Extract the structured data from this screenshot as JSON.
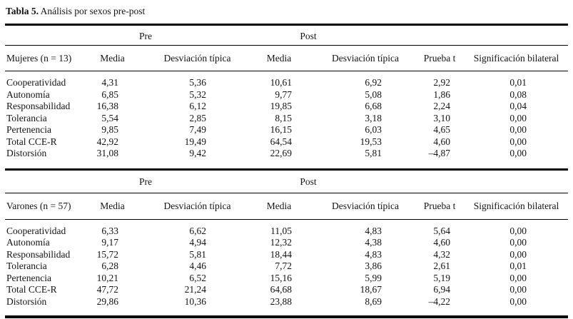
{
  "title": {
    "bold": "Tabla 5.",
    "rest": " Análisis por sexos pre-post"
  },
  "columns": {
    "pre": "Pre",
    "post": "Post",
    "media": "Media",
    "sd": "Desviación típica",
    "t": "Prueba t",
    "sig": "Significación bilateral"
  },
  "sections": [
    {
      "group_header": "Mujeres (n = 13)",
      "rows": [
        {
          "label": "Cooperatividad",
          "pre_media": "4,31",
          "pre_sd": "5,36",
          "post_media": "10,61",
          "post_sd": "6,92",
          "t": "2,92",
          "sig": "0,01"
        },
        {
          "label": "Autonomía",
          "pre_media": "6,85",
          "pre_sd": "5,32",
          "post_media": "9,77",
          "post_sd": "5,08",
          "t": "1,86",
          "sig": "0,08"
        },
        {
          "label": "Responsabilidad",
          "pre_media": "16,38",
          "pre_sd": "6,12",
          "post_media": "19,85",
          "post_sd": "6,68",
          "t": "2,24",
          "sig": "0,04"
        },
        {
          "label": "Tolerancia",
          "pre_media": "5,54",
          "pre_sd": "2,85",
          "post_media": "8,15",
          "post_sd": "3,18",
          "t": "3,10",
          "sig": "0,00"
        },
        {
          "label": "Pertenencia",
          "pre_media": "9,85",
          "pre_sd": "7,49",
          "post_media": "16,15",
          "post_sd": "6,03",
          "t": "4,65",
          "sig": "0,00"
        },
        {
          "label": "Total CCE-R",
          "pre_media": "42,92",
          "pre_sd": "19,49",
          "post_media": "64,54",
          "post_sd": "19,53",
          "t": "4,60",
          "sig": "0,00"
        },
        {
          "label": "Distorsión",
          "pre_media": "31,08",
          "pre_sd": "9,42",
          "post_media": "22,69",
          "post_sd": "5,81",
          "t": "–4,87",
          "sig": "0,00"
        }
      ]
    },
    {
      "group_header": "Varones (n = 57)",
      "rows": [
        {
          "label": "Cooperatividad",
          "pre_media": "6,33",
          "pre_sd": "6,62",
          "post_media": "11,05",
          "post_sd": "4,83",
          "t": "5,64",
          "sig": "0,00"
        },
        {
          "label": "Autonomía",
          "pre_media": "9,17",
          "pre_sd": "4,94",
          "post_media": "12,32",
          "post_sd": "4,38",
          "t": "4,60",
          "sig": "0,00"
        },
        {
          "label": "Responsabilidad",
          "pre_media": "15,72",
          "pre_sd": "5,81",
          "post_media": "18,44",
          "post_sd": "4,83",
          "t": "4,32",
          "sig": "0,00"
        },
        {
          "label": "Tolerancia",
          "pre_media": "6,28",
          "pre_sd": "4,46",
          "post_media": "7,72",
          "post_sd": "3,86",
          "t": "2,61",
          "sig": "0,01"
        },
        {
          "label": "Pertenencia",
          "pre_media": "10,21",
          "pre_sd": "6,52",
          "post_media": "15,16",
          "post_sd": "5,99",
          "t": "5,19",
          "sig": "0,00"
        },
        {
          "label": "Total CCE-R",
          "pre_media": "47,72",
          "pre_sd": "21,24",
          "post_media": "64,68",
          "post_sd": "18,67",
          "t": "6,94",
          "sig": "0,00"
        },
        {
          "label": "Distorsión",
          "pre_media": "29,86",
          "pre_sd": "10,36",
          "post_media": "23,88",
          "post_sd": "8,69",
          "t": "–4,22",
          "sig": "0,00"
        }
      ]
    }
  ]
}
